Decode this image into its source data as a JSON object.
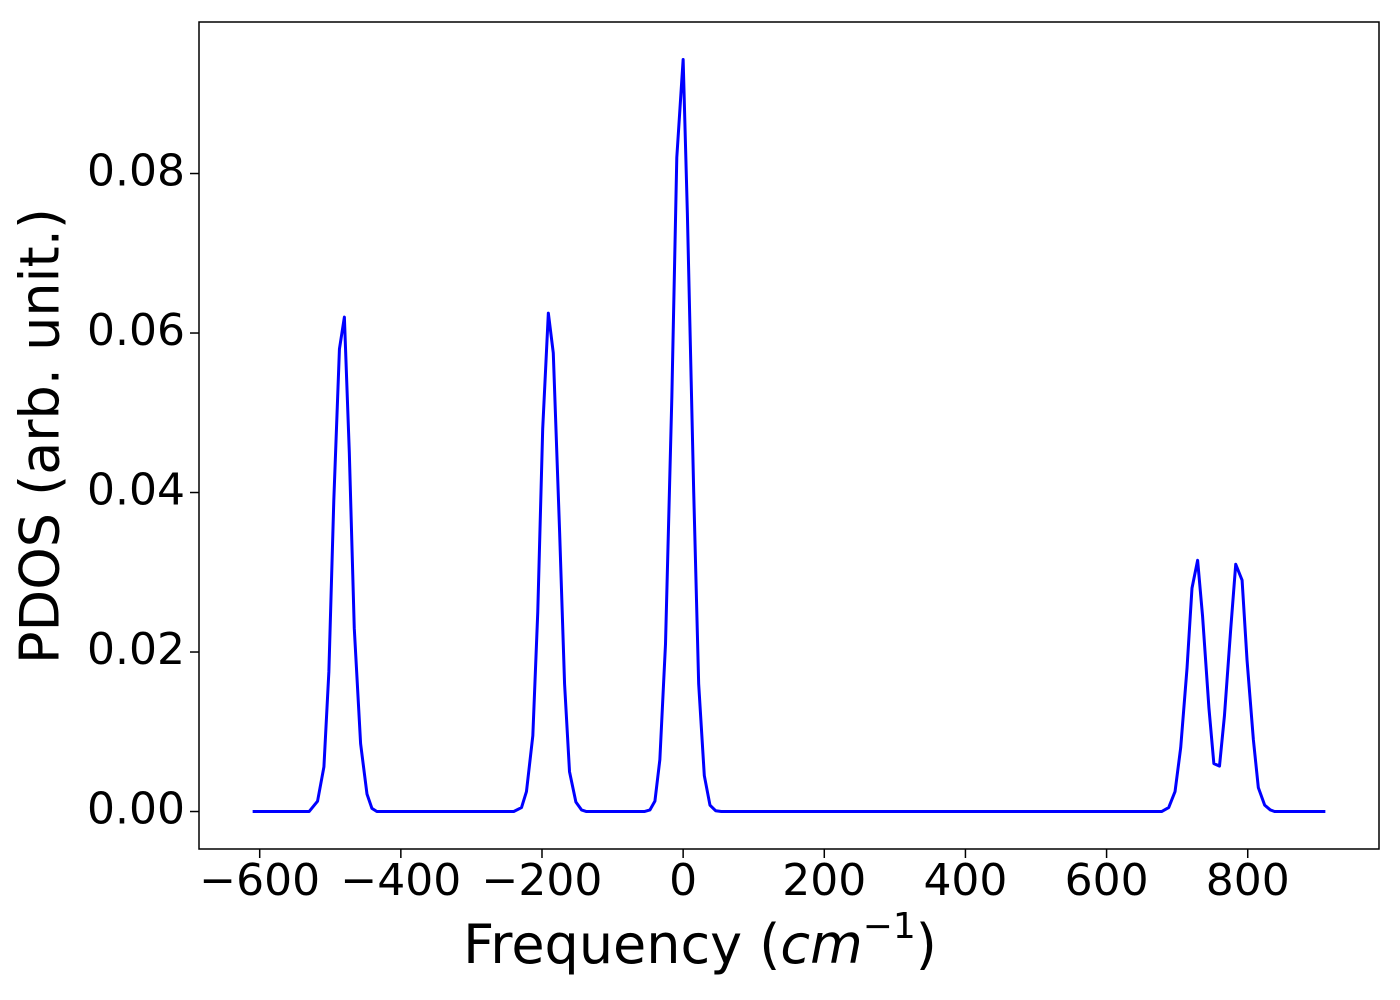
{
  "chart_data": {
    "type": "line",
    "xlabel": [
      "Frequency (",
      "cm",
      "−1",
      ")"
    ],
    "ylabel": "PDOS (arb. unit.)",
    "x": [
      -610,
      -530,
      -518,
      -509,
      -502,
      -495,
      -487,
      -480,
      -473,
      -466,
      -457,
      -448,
      -441,
      -434,
      -240,
      -229,
      -222,
      -213,
      -206,
      -199,
      -191,
      -184,
      -175,
      -168,
      -161,
      -152,
      -144,
      -137,
      -55,
      -47,
      -40,
      -33,
      -25,
      -16,
      -9,
      0,
      6,
      15,
      22,
      30,
      38,
      46,
      54,
      678,
      688,
      697,
      705,
      714,
      721,
      729,
      736,
      745,
      752,
      760,
      767,
      776,
      783,
      792,
      799,
      808,
      815,
      824,
      832,
      838,
      910
    ],
    "series": [
      {
        "name": "PDOS",
        "color": "#0000ff",
        "values": [
          0,
          0,
          0.0013,
          0.0056,
          0.0175,
          0.039,
          0.058,
          0.062,
          0.045,
          0.023,
          0.0085,
          0.0022,
          0.0004,
          0,
          0,
          0.0005,
          0.0025,
          0.0095,
          0.025,
          0.048,
          0.0625,
          0.0575,
          0.035,
          0.016,
          0.005,
          0.0012,
          0.0002,
          0,
          0,
          0.0002,
          0.0013,
          0.0065,
          0.021,
          0.052,
          0.082,
          0.0943,
          0.075,
          0.04,
          0.016,
          0.0045,
          0.0008,
          0.0001,
          0,
          0,
          0.0005,
          0.0025,
          0.008,
          0.018,
          0.028,
          0.0315,
          0.0245,
          0.013,
          0.006,
          0.0057,
          0.012,
          0.023,
          0.031,
          0.029,
          0.019,
          0.009,
          0.003,
          0.0008,
          0.0002,
          0,
          0
        ]
      }
    ],
    "xlim": [
      -686,
      986
    ],
    "ylim": [
      -0.0047,
      0.099
    ],
    "xticks": [
      {
        "value": -600,
        "label": "−600"
      },
      {
        "value": -400,
        "label": "−400"
      },
      {
        "value": -200,
        "label": "−200"
      },
      0,
      200,
      400,
      600,
      800
    ],
    "yticks": [
      {
        "value": 0,
        "label": "0.00"
      },
      {
        "value": 0.02,
        "label": "0.02"
      },
      {
        "value": 0.04,
        "label": "0.04"
      },
      {
        "value": 0.06,
        "label": "0.06"
      },
      {
        "value": 0.08,
        "label": "0.08"
      }
    ],
    "grid": false
  }
}
